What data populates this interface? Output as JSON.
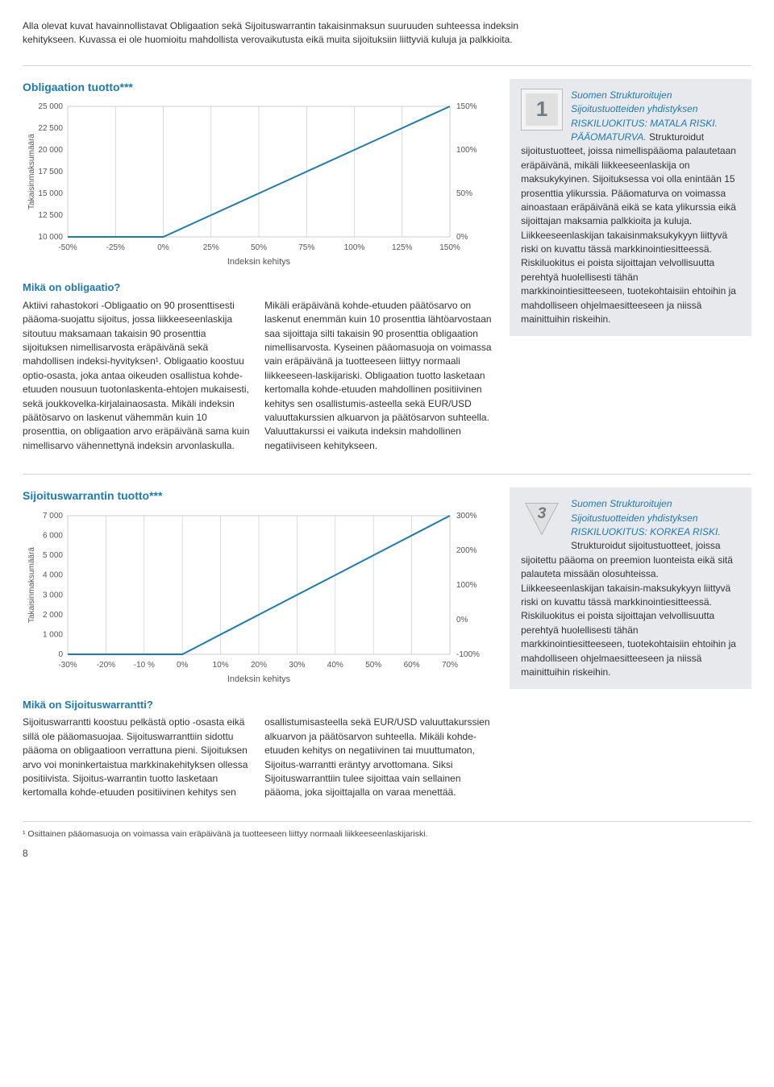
{
  "intro": "Alla olevat kuvat havainnollistavat Obligaation sekä Sijoituswarrantin takaisinmaksun suuruuden suhteessa indeksin kehitykseen. Kuvassa ei ole huomioitu mahdollista verovaikutusta eikä muita sijoituksiin liittyviä kuluja ja palkkioita.",
  "chart1": {
    "title": "Obligaation tuotto***",
    "y_ticks": [
      "25 000",
      "22 500",
      "20 000",
      "17 500",
      "15 000",
      "12 500",
      "10 000"
    ],
    "x_ticks": [
      "-50%",
      "-25%",
      "0%",
      "25%",
      "50%",
      "75%",
      "100%",
      "125%",
      "150%"
    ],
    "r_ticks": [
      "150%",
      "100%",
      "50%",
      "0%"
    ],
    "y_label": "Takaisinmaksumäärä",
    "x_label": "Indeksin kehitys",
    "line_color": "#1b7bb2",
    "grid_color": "#cccccc",
    "bg": "#ffffff",
    "points_x": [
      -50,
      -25,
      0,
      25,
      50,
      75,
      100,
      125,
      150
    ],
    "points_y": [
      10000,
      10000,
      10000,
      12500,
      15000,
      17500,
      20000,
      22500,
      25000
    ],
    "y_min": 10000,
    "y_max": 25000,
    "x_min": -50,
    "x_max": 150
  },
  "chart2": {
    "title": "Sijoituswarrantin tuotto***",
    "y_ticks": [
      "7 000",
      "6 000",
      "5 000",
      "4 000",
      "3 000",
      "2 000",
      "1 000",
      "0"
    ],
    "x_ticks": [
      "-30%",
      "-20%",
      "-10 %",
      "0%",
      "10%",
      "20%",
      "30%",
      "40%",
      "50%",
      "60%",
      "70%"
    ],
    "r_ticks": [
      "300%",
      "200%",
      "100%",
      "0%",
      "-100%"
    ],
    "y_label": "Takaisinmaksumäärä",
    "x_label": "Indeksin kehitys",
    "line_color": "#1b7bb2",
    "grid_color": "#cccccc",
    "bg": "#ffffff",
    "points_x": [
      -30,
      -20,
      -10,
      0,
      10,
      20,
      30,
      40,
      50,
      60,
      70
    ],
    "points_y": [
      0,
      0,
      0,
      0,
      1000,
      2000,
      3000,
      4000,
      5000,
      6000,
      7000
    ],
    "y_min": 0,
    "y_max": 7000,
    "x_min": -30,
    "x_max": 70
  },
  "mika_obligaatio_title": "Mikä on obligaatio?",
  "mika_obligaatio_left": "Aktiivi rahastokori -Obligaatio on 90 prosenttisesti pääoma-suojattu sijoitus, jossa liikkeeseenlaskija sitoutuu maksamaan takaisin 90 prosenttia sijoituksen nimellisarvosta eräpäivänä sekä mahdollisen indeksi-hyvityksen¹. Obligaatio koostuu optio-osasta, joka antaa oikeuden osallistua kohde-etuuden nousuun tuotonlaskenta-ehtojen mukaisesti, sekä joukkovelka-kirjalainaosasta. Mikäli indeksin päätösarvo on laskenut vähemmän kuin 10 prosenttia, on obligaation arvo eräpäivänä sama kuin nimellisarvo vähennettynä indeksin arvonlaskulla.",
  "mika_obligaatio_right": "Mikäli eräpäivänä kohde-etuuden päätösarvo on laskenut enemmän kuin 10 prosenttia lähtöarvostaan saa sijoittaja silti takaisin 90 prosenttia obligaation nimellisarvosta. Kyseinen pääomasuoja on voimassa vain eräpäivänä ja tuotteeseen liittyy normaali liikkeeseen-laskijariski. Obligaation tuotto lasketaan kertomalla kohde-etuuden mahdollinen positiivinen kehitys sen osallistumis-asteella sekä EUR/USD valuuttakurssien alkuarvon ja päätösarvon suhteella. Valuuttakurssi ei vaikuta indeksin mahdollinen negatiiviseen kehitykseen.",
  "mika_sijoitus_title": "Mikä on Sijoituswarrantti?",
  "mika_sijoitus_left": "Sijoituswarrantti koostuu pelkästä optio -osasta eikä sillä ole pääomasuojaa. Sijoituswarranttiin sidottu pääoma on obligaatioon verrattuna pieni. Sijoituksen arvo voi moninkertaistua markkinakehityksen ollessa positiivista. Sijoitus-warrantin tuotto lasketaan kertomalla kohde-etuuden positiivinen kehitys sen",
  "mika_sijoitus_right": "osallistumisasteella sekä EUR/USD valuuttakurssien alkuarvon ja päätösarvon suhteella. Mikäli kohde-etuuden kehitys on negatiivinen tai muuttumaton, Sijoitus-warrantti eräntyy arvottomana. Siksi Sijoituswarranttiin tulee sijoittaa vain sellainen pääoma, joka sijoittajalla on varaa menettää.",
  "sidebar1_lead": "Suomen Strukturoitujen Sijoitustuotteiden yhdistyksen RISKILUOKITUS: MATALA RISKI. PÄÄOMATURVA. ",
  "sidebar1_body": "Strukturoidut sijoitustuotteet, joissa nimellispääoma palautetaan eräpäivänä, mikäli liikkeeseenlaskija on maksukykyinen. Sijoituksessa voi olla enintään 15 prosenttia ylikurssia. Pääomaturva on voimassa ainoastaan eräpäivänä eikä se kata ylikurssia eikä sijoittajan maksamia palkkioita ja kuluja. Liikkeeseenlaskijan takaisinmaksukykyyn liittyvä riski on kuvattu tässä markkinointiesitteessä. Riskiluokitus ei poista sijoittajan velvollisuutta perehtyä huolellisesti tähän markkinointiesitteeseen, tuotekohtaisiin ehtoihin ja mahdolliseen ohjelmaesitteeseen ja niissä mainittuihin riskeihin.",
  "sidebar2_lead": "Suomen Strukturoitujen Sijoitustuotteiden yhdistyksen RISKILUOKITUS: KORKEA RISKI. ",
  "sidebar2_body": "Strukturoidut sijoitustuotteet, joissa sijoitettu pääoma on preemion luonteista eikä sitä palauteta missään olosuhteissa. Liikkeeseenlaskijan takaisin-maksukykyyn liittyvä riski on kuvattu tässä markkinointiesitteessä. Riskiluokitus ei poista sijoittajan velvollisuutta perehtyä huolellisesti tähän markkinointiesitteeseen, tuotekohtaisiin ehtoihin ja mahdolliseen ohjelmaesitteeseen ja niissä mainittuihin riskeihin.",
  "sidebar1_num": "1",
  "sidebar2_num": "3",
  "footnote": "¹ Osittainen pääomasuoja on voimassa vain eräpäivänä ja tuotteeseen liittyy normaali liikkeeseenlaskijariski.",
  "page_num": "8"
}
